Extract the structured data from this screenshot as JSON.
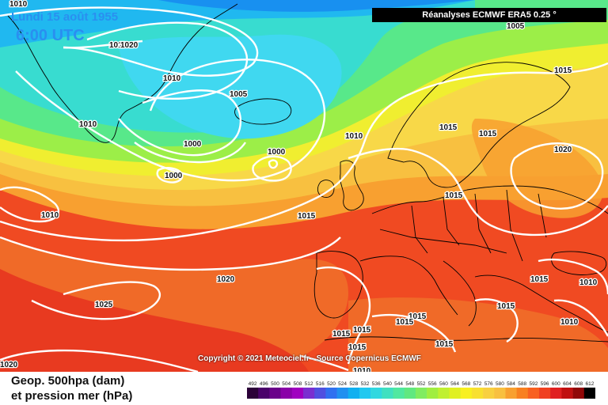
{
  "header": {
    "date": "Lundi 15 août 1955",
    "time": "6:00 UTC",
    "source": "Réanalyses ECMWF ERA5 0.25 °"
  },
  "footer": {
    "copyright": "Copyright © 2021 Meteociel.fr - Source Copernicus ECMWF",
    "legend_line1": "Geop. 500hpa (dam)",
    "legend_line2": "et pression mer (hPa)"
  },
  "map": {
    "variables": [
      "Geopotential 500 hPa (dam)",
      "Mean sea level pressure (hPa)"
    ],
    "isobar_labels": [
      "1010",
      "1010",
      "1020",
      "1005",
      "1010",
      "1010",
      "1005",
      "1000",
      "1000",
      "1000",
      "1010",
      "1015",
      "1015",
      "1015",
      "1015",
      "1020",
      "1010",
      "1015",
      "1015",
      "1015",
      "1015",
      "1010",
      "1020",
      "1025",
      "1015",
      "1015",
      "1015",
      "1015",
      "1010",
      "1020",
      "1015",
      "1010"
    ]
  },
  "colorbar": {
    "ticks": [
      "492",
      "496",
      "500",
      "504",
      "508",
      "512",
      "516",
      "520",
      "524",
      "528",
      "532",
      "536",
      "540",
      "544",
      "548",
      "552",
      "556",
      "560",
      "564",
      "568",
      "572",
      "576",
      "580",
      "584",
      "588",
      "592",
      "596",
      "600",
      "604",
      "608",
      "612"
    ],
    "colors": [
      "#2b0038",
      "#4a006a",
      "#6a008a",
      "#8a00a8",
      "#a000c0",
      "#7a2fd0",
      "#5050e0",
      "#3070f0",
      "#2090f0",
      "#10b0f0",
      "#20c8f0",
      "#30d8e0",
      "#40e0c0",
      "#50e8a0",
      "#60e880",
      "#80ec60",
      "#a0ee40",
      "#c0f030",
      "#e0f020",
      "#f8f020",
      "#f8e030",
      "#f8d040",
      "#f8c040",
      "#f8a030",
      "#f88020",
      "#f86020",
      "#f04020",
      "#e02020",
      "#c01010",
      "#900808",
      "#000000"
    ]
  }
}
